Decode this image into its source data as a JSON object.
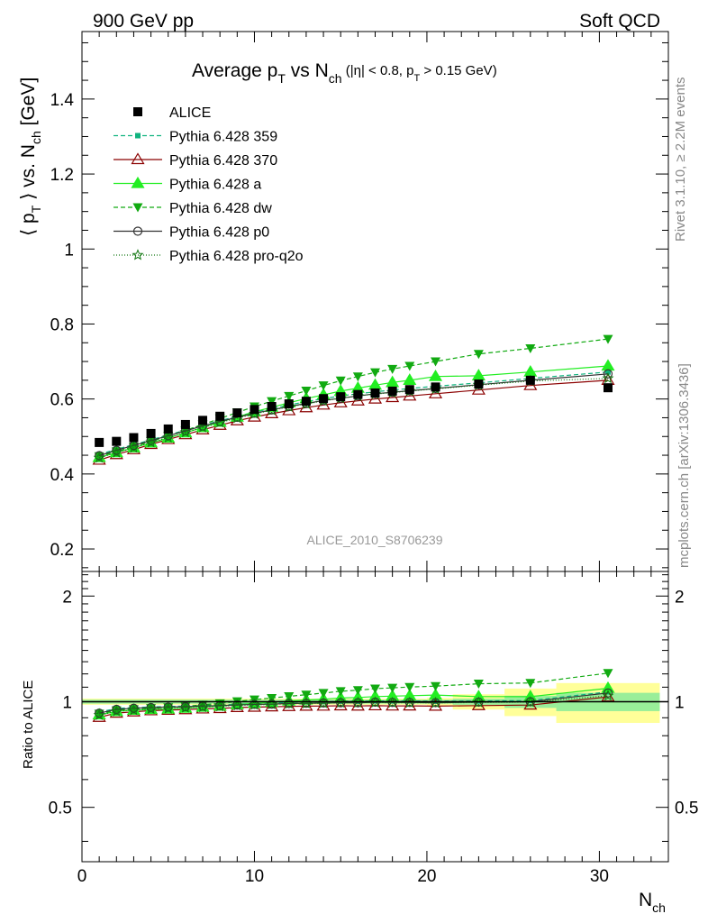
{
  "header": {
    "left": "900 GeV pp",
    "right": "Soft QCD"
  },
  "side_text": {
    "top": "Rivet 3.1.10, ≥ 2.2M events",
    "bottom": "mcplots.cern.ch [arXiv:1306.3436]"
  },
  "chart_data": {
    "type": "line",
    "title": {
      "main": "Average p",
      "sub_T": "T",
      "mid": " vs N",
      "sub_ch": "ch",
      "cut": " (|η| < 0.8, p",
      "cut_sub": "T",
      "cut_end": " > 0.15 GeV)"
    },
    "watermark": "ALICE_2010_S8706239",
    "xlabel": "N",
    "xlabel_sub": "ch",
    "ylabel": {
      "a": "⟨ p",
      "sub": "T",
      "b": " ⟩ vs. N",
      "sub2": "ch",
      "c": " [GeV]"
    },
    "ratio_ylabel": "Ratio to ALICE",
    "xlim": [
      0,
      34
    ],
    "ylim": [
      0.14,
      1.58
    ],
    "ratio_ylim": [
      0.35,
      2.35
    ],
    "x_ticks": [
      "0",
      "10",
      "20",
      "30"
    ],
    "y_ticks": [
      "0.2",
      "0.4",
      "0.6",
      "0.8",
      "1",
      "1.2",
      "1.4"
    ],
    "ratio_ticks": [
      "0.5",
      "1",
      "2"
    ],
    "legend_position": "top-left",
    "data": {
      "name": "ALICE",
      "x": [
        1,
        2,
        3,
        4,
        5,
        6,
        7,
        8,
        9,
        10,
        11,
        12,
        13,
        14,
        15,
        16,
        17,
        18,
        19,
        20.5,
        23,
        26,
        30.5
      ],
      "y": [
        0.484,
        0.487,
        0.497,
        0.508,
        0.52,
        0.532,
        0.543,
        0.554,
        0.563,
        0.572,
        0.58,
        0.587,
        0.594,
        0.601,
        0.606,
        0.612,
        0.616,
        0.621,
        0.625,
        0.632,
        0.64,
        0.65,
        0.63
      ]
    },
    "series": [
      {
        "name": "Pythia 6.428 359",
        "color": "#10b37f",
        "dash": "5,3",
        "marker": "square-small",
        "y": [
          0.452,
          0.466,
          0.478,
          0.491,
          0.504,
          0.517,
          0.53,
          0.542,
          0.554,
          0.565,
          0.575,
          0.584,
          0.593,
          0.601,
          0.608,
          0.614,
          0.619,
          0.624,
          0.628,
          0.634,
          0.643,
          0.655,
          0.672
        ]
      },
      {
        "name": "Pythia 6.428 370",
        "color": "#8b0000",
        "dash": "",
        "marker": "triangle-open",
        "y": [
          0.437,
          0.452,
          0.465,
          0.479,
          0.492,
          0.505,
          0.518,
          0.53,
          0.542,
          0.552,
          0.561,
          0.569,
          0.577,
          0.584,
          0.59,
          0.595,
          0.6,
          0.604,
          0.608,
          0.614,
          0.624,
          0.636,
          0.65
        ]
      },
      {
        "name": "Pythia 6.428 a",
        "color": "#22ee22",
        "dash": "",
        "marker": "triangle-filled",
        "y": [
          0.444,
          0.457,
          0.47,
          0.483,
          0.496,
          0.51,
          0.524,
          0.538,
          0.552,
          0.566,
          0.578,
          0.59,
          0.601,
          0.611,
          0.621,
          0.629,
          0.637,
          0.644,
          0.65,
          0.66,
          0.662,
          0.672,
          0.688
        ]
      },
      {
        "name": "Pythia 6.428 dw",
        "color": "#11aa11",
        "dash": "5,3",
        "marker": "triangle-down",
        "y": [
          0.447,
          0.46,
          0.473,
          0.487,
          0.501,
          0.516,
          0.532,
          0.548,
          0.564,
          0.58,
          0.594,
          0.608,
          0.622,
          0.636,
          0.649,
          0.66,
          0.671,
          0.68,
          0.688,
          0.7,
          0.72,
          0.735,
          0.76
        ]
      },
      {
        "name": "Pythia 6.428 p0",
        "color": "#333333",
        "dash": "",
        "marker": "circle-open",
        "y": [
          0.449,
          0.463,
          0.476,
          0.489,
          0.502,
          0.515,
          0.528,
          0.54,
          0.551,
          0.562,
          0.571,
          0.58,
          0.588,
          0.596,
          0.602,
          0.608,
          0.614,
          0.618,
          0.622,
          0.628,
          0.638,
          0.65,
          0.667
        ]
      },
      {
        "name": "Pythia 6.428 pro-q2o",
        "color": "#117711",
        "dash": "1,2",
        "marker": "star-open",
        "y": [
          0.443,
          0.457,
          0.47,
          0.484,
          0.497,
          0.511,
          0.524,
          0.537,
          0.549,
          0.56,
          0.57,
          0.579,
          0.587,
          0.595,
          0.602,
          0.608,
          0.613,
          0.617,
          0.621,
          0.627,
          0.637,
          0.648,
          0.655
        ]
      }
    ],
    "ratio_band": {
      "x_edges": [
        0,
        20,
        21.5,
        24.5,
        27.5,
        33.5
      ],
      "inner": [
        0.013,
        0.013,
        0.013,
        0.02,
        0.04,
        0.06
      ],
      "outer": [
        0.02,
        0.02,
        0.025,
        0.05,
        0.09,
        0.13
      ]
    }
  }
}
